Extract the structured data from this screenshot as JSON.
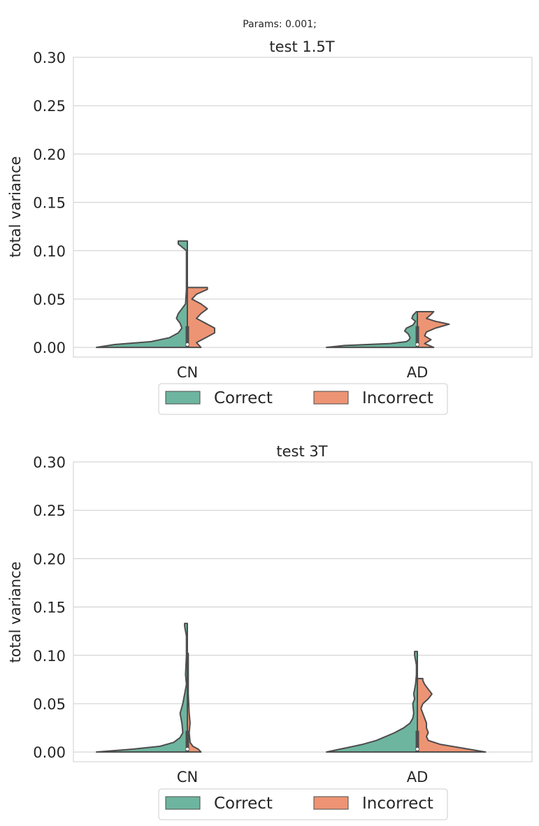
{
  "suptitle": "Params: 0.001;",
  "colors": {
    "correct": "#6db59f",
    "incorrect": "#ed9474",
    "outline": "#4d4d4d",
    "grid": "#cccccc",
    "text": "#262626",
    "axes_edge": "#cccccc"
  },
  "chart_data": [
    {
      "type": "violin",
      "subtype": "split-violin",
      "title": "test 1.5T",
      "xlabel": "",
      "ylabel": "total variance",
      "ylim": [
        -0.01,
        0.3
      ],
      "yticks": [
        "0.00",
        "0.05",
        "0.10",
        "0.15",
        "0.20",
        "0.25",
        "0.30"
      ],
      "ytick_values": [
        0,
        0.05,
        0.1,
        0.15,
        0.2,
        0.25,
        0.3
      ],
      "categories": [
        "CN",
        "AD"
      ],
      "grid": true,
      "legend": {
        "position": "bottom-center",
        "entries": [
          "Correct",
          "Incorrect"
        ]
      },
      "series": [
        {
          "name": "Correct",
          "side": "left",
          "violins": [
            {
              "category": "CN",
              "max": 0.11,
              "profile": [
                [
                  0.0,
                  1.0
                ],
                [
                  0.003,
                  0.8
                ],
                [
                  0.006,
                  0.4
                ],
                [
                  0.01,
                  0.2
                ],
                [
                  0.015,
                  0.1
                ],
                [
                  0.02,
                  0.06
                ],
                [
                  0.025,
                  0.08
                ],
                [
                  0.03,
                  0.12
                ],
                [
                  0.035,
                  0.1
                ],
                [
                  0.04,
                  0.06
                ],
                [
                  0.045,
                  0.02
                ],
                [
                  0.06,
                  0.01
                ],
                [
                  0.08,
                  0.01
                ],
                [
                  0.1,
                  0.01
                ],
                [
                  0.107,
                  0.1
                ],
                [
                  0.11,
                  0.1
                ]
              ]
            },
            {
              "category": "AD",
              "max": 0.037,
              "profile": [
                [
                  0.0,
                  1.0
                ],
                [
                  0.002,
                  0.8
                ],
                [
                  0.004,
                  0.3
                ],
                [
                  0.006,
                  0.12
                ],
                [
                  0.008,
                  0.09
                ],
                [
                  0.01,
                  0.08
                ],
                [
                  0.014,
                  0.1
                ],
                [
                  0.017,
                  0.14
                ],
                [
                  0.02,
                  0.12
                ],
                [
                  0.023,
                  0.05
                ],
                [
                  0.027,
                  0.02
                ],
                [
                  0.03,
                  0.06
                ],
                [
                  0.033,
                  0.05
                ],
                [
                  0.037,
                  0.01
                ]
              ]
            }
          ]
        },
        {
          "name": "Incorrect",
          "side": "right",
          "violins": [
            {
              "category": "CN",
              "max": 0.062,
              "profile": [
                [
                  0.0,
                  0.15
                ],
                [
                  0.005,
                  0.1
                ],
                [
                  0.01,
                  0.2
                ],
                [
                  0.015,
                  0.3
                ],
                [
                  0.02,
                  0.3
                ],
                [
                  0.025,
                  0.2
                ],
                [
                  0.03,
                  0.1
                ],
                [
                  0.035,
                  0.15
                ],
                [
                  0.04,
                  0.22
                ],
                [
                  0.045,
                  0.15
                ],
                [
                  0.05,
                  0.05
                ],
                [
                  0.055,
                  0.1
                ],
                [
                  0.06,
                  0.22
                ],
                [
                  0.062,
                  0.22
                ]
              ]
            },
            {
              "category": "AD",
              "max": 0.037,
              "profile": [
                [
                  0.0,
                  0.18
                ],
                [
                  0.004,
                  0.08
                ],
                [
                  0.008,
                  0.15
                ],
                [
                  0.012,
                  0.08
                ],
                [
                  0.016,
                  0.1
                ],
                [
                  0.02,
                  0.2
                ],
                [
                  0.024,
                  0.35
                ],
                [
                  0.027,
                  0.2
                ],
                [
                  0.03,
                  0.1
                ],
                [
                  0.034,
                  0.15
                ],
                [
                  0.037,
                  0.18
                ]
              ]
            }
          ]
        }
      ]
    },
    {
      "type": "violin",
      "subtype": "split-violin",
      "title": "test 3T",
      "xlabel": "",
      "ylabel": "total variance",
      "ylim": [
        -0.01,
        0.3
      ],
      "yticks": [
        "0.00",
        "0.05",
        "0.10",
        "0.15",
        "0.20",
        "0.25",
        "0.30"
      ],
      "ytick_values": [
        0,
        0.05,
        0.1,
        0.15,
        0.2,
        0.25,
        0.3
      ],
      "categories": [
        "CN",
        "AD"
      ],
      "grid": true,
      "legend": {
        "position": "bottom-center",
        "entries": [
          "Correct",
          "Incorrect"
        ]
      },
      "series": [
        {
          "name": "Correct",
          "side": "left",
          "violins": [
            {
              "category": "CN",
              "max": 0.133,
              "profile": [
                [
                  0.0,
                  1.0
                ],
                [
                  0.003,
                  0.6
                ],
                [
                  0.006,
                  0.3
                ],
                [
                  0.01,
                  0.15
                ],
                [
                  0.015,
                  0.08
                ],
                [
                  0.02,
                  0.05
                ],
                [
                  0.03,
                  0.06
                ],
                [
                  0.04,
                  0.08
                ],
                [
                  0.05,
                  0.05
                ],
                [
                  0.06,
                  0.03
                ],
                [
                  0.07,
                  0.01
                ],
                [
                  0.08,
                  0.02
                ],
                [
                  0.1,
                  0.01
                ],
                [
                  0.12,
                  0.01
                ],
                [
                  0.13,
                  0.03
                ],
                [
                  0.133,
                  0.03
                ]
              ]
            },
            {
              "category": "AD",
              "max": 0.104,
              "profile": [
                [
                  0.0,
                  1.0
                ],
                [
                  0.004,
                  0.8
                ],
                [
                  0.008,
                  0.6
                ],
                [
                  0.012,
                  0.45
                ],
                [
                  0.016,
                  0.35
                ],
                [
                  0.02,
                  0.25
                ],
                [
                  0.025,
                  0.15
                ],
                [
                  0.03,
                  0.08
                ],
                [
                  0.035,
                  0.05
                ],
                [
                  0.04,
                  0.04
                ],
                [
                  0.05,
                  0.05
                ],
                [
                  0.055,
                  0.03
                ],
                [
                  0.06,
                  0.04
                ],
                [
                  0.07,
                  0.02
                ],
                [
                  0.08,
                  0.01
                ],
                [
                  0.09,
                  0.01
                ],
                [
                  0.1,
                  0.03
                ],
                [
                  0.104,
                  0.03
                ]
              ]
            }
          ]
        },
        {
          "name": "Incorrect",
          "side": "right",
          "violins": [
            {
              "category": "CN",
              "max": 0.102,
              "profile": [
                [
                  0.0,
                  0.15
                ],
                [
                  0.003,
                  0.12
                ],
                [
                  0.006,
                  0.06
                ],
                [
                  0.01,
                  0.03
                ],
                [
                  0.02,
                  0.02
                ],
                [
                  0.03,
                  0.03
                ],
                [
                  0.04,
                  0.02
                ],
                [
                  0.06,
                  0.01
                ],
                [
                  0.08,
                  0.01
                ],
                [
                  0.1,
                  0.01
                ],
                [
                  0.102,
                  0.01
                ]
              ]
            },
            {
              "category": "AD",
              "max": 0.076,
              "profile": [
                [
                  0.0,
                  0.75
                ],
                [
                  0.004,
                  0.5
                ],
                [
                  0.008,
                  0.25
                ],
                [
                  0.012,
                  0.12
                ],
                [
                  0.016,
                  0.1
                ],
                [
                  0.02,
                  0.12
                ],
                [
                  0.025,
                  0.1
                ],
                [
                  0.03,
                  0.1
                ],
                [
                  0.035,
                  0.08
                ],
                [
                  0.04,
                  0.06
                ],
                [
                  0.045,
                  0.04
                ],
                [
                  0.05,
                  0.06
                ],
                [
                  0.055,
                  0.12
                ],
                [
                  0.06,
                  0.16
                ],
                [
                  0.065,
                  0.12
                ],
                [
                  0.07,
                  0.08
                ],
                [
                  0.074,
                  0.06
                ],
                [
                  0.076,
                  0.06
                ]
              ]
            }
          ]
        }
      ]
    }
  ]
}
